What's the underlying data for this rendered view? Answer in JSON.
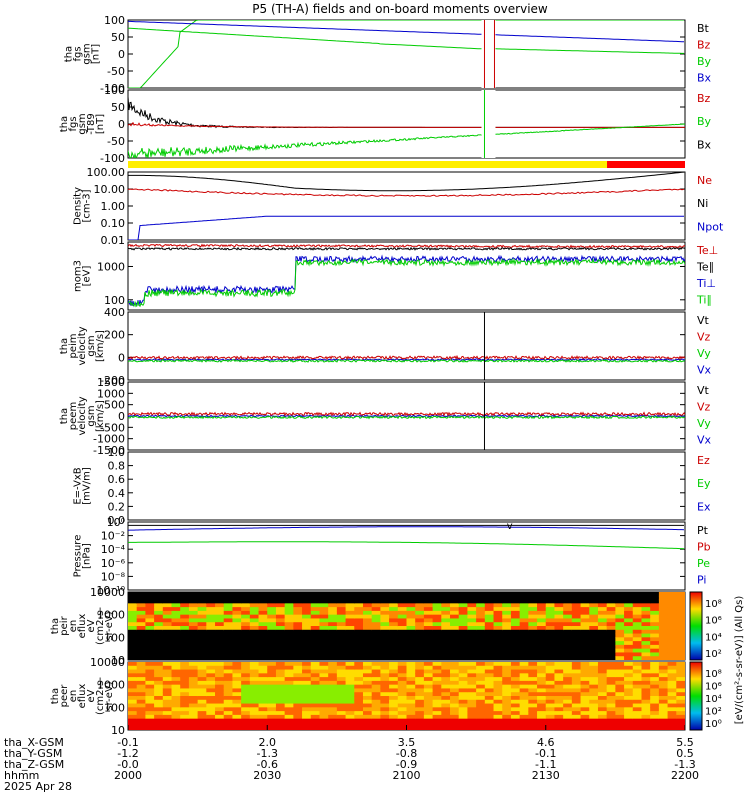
{
  "title": "P5 (TH-A) fields and on-board moments overview",
  "chart_data": {
    "type": "line",
    "title": "P5 (TH-A) fields and on-board moments overview",
    "time_axis": {
      "ticks": [
        "2000",
        "2030",
        "2100",
        "2130",
        "2200"
      ],
      "ephemeris": [
        {
          "label": "tha_X-GSM",
          "values": [
            "-0.1",
            "2.0",
            "3.5",
            "4.6",
            "5.5"
          ]
        },
        {
          "label": "tha_Y-GSM",
          "values": [
            "-1.2",
            "-1.3",
            "-0.8",
            "-0.1",
            "0.5"
          ]
        },
        {
          "label": "tha_Z-GSM",
          "values": [
            "-0.0",
            "-0.6",
            "-0.9",
            "-1.1",
            "-1.3"
          ]
        },
        {
          "label": "hhmm",
          "values": []
        }
      ],
      "date": "2025 Apr 28"
    },
    "panels": [
      {
        "id": "fgs",
        "ylabel": [
          "tha",
          "fgs",
          "gsm",
          "[nT]"
        ],
        "ticks": [
          "100",
          "50",
          "0",
          "-50",
          "-100"
        ],
        "ylim": [
          -100,
          100
        ],
        "legend": [
          {
            "name": "Bt",
            "color": "#000000"
          },
          {
            "name": "Bz",
            "color": "#cc0000"
          },
          {
            "name": "By",
            "color": "#00cc00"
          },
          {
            "name": "Bx",
            "color": "#0000cc"
          }
        ]
      },
      {
        "id": "fgs_t89",
        "ylabel": [
          "tha",
          "fgs",
          "gsm",
          "-T89",
          "[nT]"
        ],
        "ticks": [
          "100",
          "50",
          "0",
          "-50",
          "-100"
        ],
        "ylim": [
          -120,
          100
        ],
        "legend": [
          {
            "name": "Bz",
            "color": "#cc0000"
          },
          {
            "name": "By",
            "color": "#00cc00"
          },
          {
            "name": "Bx",
            "color": "#000000"
          }
        ]
      },
      {
        "id": "density",
        "ylabel": [
          "Density",
          "[cm-3]"
        ],
        "ticks": [
          "100.00",
          "10.00",
          "1.00",
          "0.10",
          "0.01"
        ],
        "log": true,
        "legend": [
          {
            "name": "Ne",
            "color": "#cc0000"
          },
          {
            "name": "Ni",
            "color": "#000000"
          },
          {
            "name": "Npot",
            "color": "#0000cc"
          }
        ]
      },
      {
        "id": "temperature",
        "ylabel": [
          "mom3",
          "[eV]"
        ],
        "ticks": [
          "1000",
          "100"
        ],
        "log": true,
        "legend": [
          {
            "name": "Te⊥",
            "color": "#cc0000"
          },
          {
            "name": "Te∥",
            "color": "#000000"
          },
          {
            "name": "Ti⊥",
            "color": "#0000cc"
          },
          {
            "name": "Ti∥",
            "color": "#00cc00"
          }
        ]
      },
      {
        "id": "peim_velocity",
        "ylabel": [
          "tha",
          "peim",
          "velocity",
          "gsm",
          "[km/s]"
        ],
        "ticks": [
          "400",
          "200",
          "0",
          "-200"
        ],
        "ylim": [
          -300,
          550
        ],
        "legend": [
          {
            "name": "Vt",
            "color": "#000000"
          },
          {
            "name": "Vz",
            "color": "#cc0000"
          },
          {
            "name": "Vy",
            "color": "#00cc00"
          },
          {
            "name": "Vx",
            "color": "#0000cc"
          }
        ]
      },
      {
        "id": "peem_velocity",
        "ylabel": [
          "tha",
          "peem",
          "velocity",
          "gsm",
          "[km/s]"
        ],
        "ticks": [
          "1500",
          "1000",
          "500",
          "0",
          "-500",
          "-1000",
          "-1500"
        ],
        "ylim": [
          -1500,
          1500
        ],
        "legend": [
          {
            "name": "Vt",
            "color": "#000000"
          },
          {
            "name": "Vz",
            "color": "#cc0000"
          },
          {
            "name": "Vy",
            "color": "#00cc00"
          },
          {
            "name": "Vx",
            "color": "#0000cc"
          }
        ]
      },
      {
        "id": "efield",
        "ylabel": [
          "E=-VxB",
          "[mV/m]"
        ],
        "ticks": [
          "1.0",
          "0.8",
          "0.6",
          "0.4",
          "0.2",
          "0.0"
        ],
        "ylim": [
          0,
          1
        ],
        "legend": [
          {
            "name": "Ez",
            "color": "#cc0000"
          },
          {
            "name": "Ey",
            "color": "#00cc00"
          },
          {
            "name": "Ex",
            "color": "#0000cc"
          }
        ]
      },
      {
        "id": "pressure",
        "ylabel": [
          "Pressure",
          "[nPa]"
        ],
        "ticks": [
          "10⁰",
          "10⁻²",
          "10⁻⁴",
          "10⁻⁶",
          "10⁻⁸",
          "10⁻¹⁰"
        ],
        "log": true,
        "legend": [
          {
            "name": "Pt",
            "color": "#000000"
          },
          {
            "name": "Pb",
            "color": "#cc0000"
          },
          {
            "name": "Pe",
            "color": "#00cc00"
          },
          {
            "name": "Pi",
            "color": "#0000cc"
          }
        ]
      },
      {
        "id": "peir_eflux",
        "ylabel": [
          "tha",
          "peir",
          "en",
          "eflux",
          "eV",
          "(cm2-s-",
          "sr-eV)"
        ],
        "ticks": [
          "10000",
          "1000",
          "100",
          "10"
        ],
        "log": true,
        "spectrogram": true
      },
      {
        "id": "peer_eflux",
        "ylabel": [
          "tha",
          "peer",
          "en",
          "eflux",
          "eV",
          "(cm2-s-",
          "sr-eV)"
        ],
        "ticks": [
          "10000",
          "1000",
          "100",
          "10"
        ],
        "log": true,
        "spectrogram": true
      }
    ],
    "colorbars": [
      {
        "ticks": [
          "10⁸",
          "10⁶",
          "10⁴",
          "10²"
        ]
      },
      {
        "ticks": [
          "10⁸",
          "10⁶",
          "10⁴",
          "10²",
          "10⁰"
        ]
      }
    ],
    "colorbar_label": "[eV/(cm²-s-sr-eV)] (All Qs)",
    "mode_bar": {
      "colors": [
        "#ffee00",
        "#ff0000"
      ],
      "switch_fraction": 0.86
    },
    "annotation": "v"
  }
}
